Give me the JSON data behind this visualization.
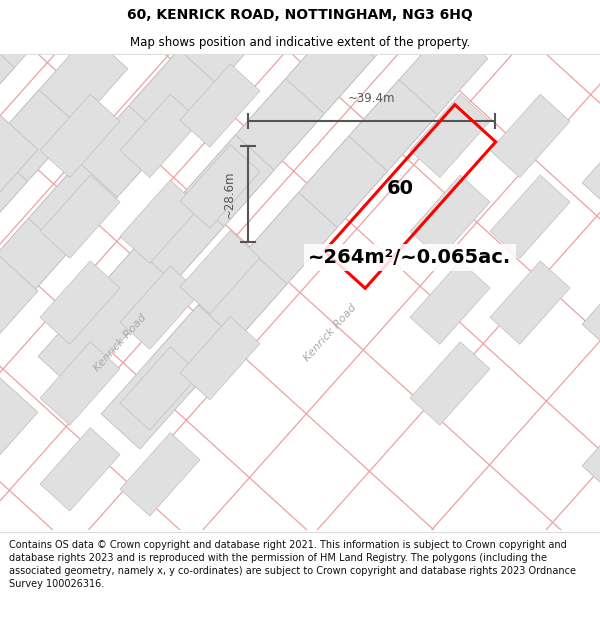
{
  "title": "60, KENRICK ROAD, NOTTINGHAM, NG3 6HQ",
  "subtitle": "Map shows position and indicative extent of the property.",
  "footnote": "Contains OS data © Crown copyright and database right 2021. This information is subject to Crown copyright and database rights 2023 and is reproduced with the permission of HM Land Registry. The polygons (including the associated geometry, namely x, y co-ordinates) are subject to Crown copyright and database rights 2023 Ordnance Survey 100026316.",
  "area_text": "~264m²/~0.065ac.",
  "dim_width": "~39.4m",
  "dim_height": "~28.6m",
  "road_label_lower": "Kenrick Road",
  "road_label_upper": "Kenrick Road",
  "property_label": "60",
  "highlight_color": "#ff0000",
  "dim_color": "#555555",
  "block_fill": "#e0e0e0",
  "block_edge": "#c0c0c0",
  "road_line_color": "#f0a0a0",
  "bg_color": "#ffffff",
  "road_label_color": "#aaaaaa",
  "title_fontsize": 10,
  "subtitle_fontsize": 8.5,
  "footnote_fontsize": 7
}
